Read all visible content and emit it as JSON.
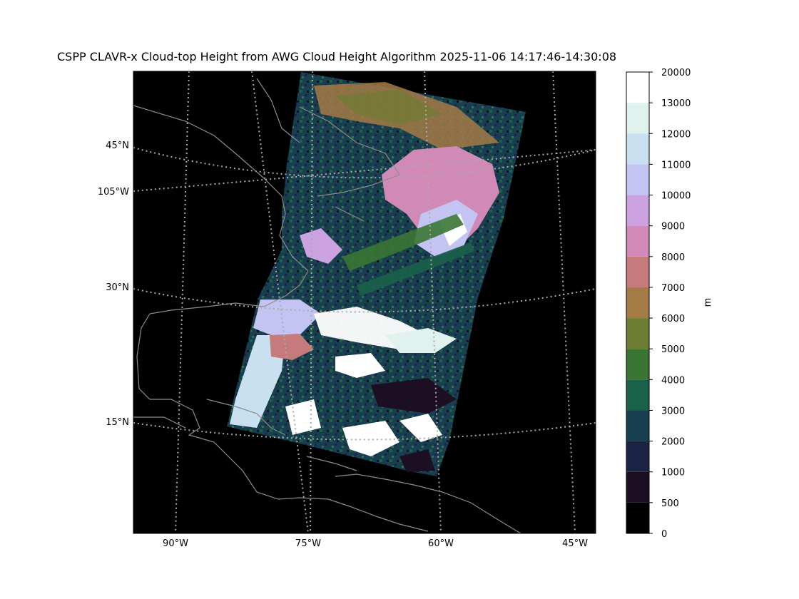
{
  "title": "CSPP CLAVR-x Cloud-top Height from AWG Cloud Height Algorithm 2025-11-06 14:17:46-14:30:08",
  "map": {
    "lat_labels": [
      "45°N",
      "105°W",
      "30°N",
      "15°N"
    ],
    "lon_labels": [
      "90°W",
      "75°W",
      "60°W",
      "45°W"
    ]
  },
  "colorbar": {
    "unit": "m",
    "ticks": [
      "0",
      "500",
      "1000",
      "2000",
      "3000",
      "4000",
      "5000",
      "6000",
      "7000",
      "8000",
      "9000",
      "10000",
      "11000",
      "12000",
      "13000",
      "20000"
    ],
    "colors": [
      "#000000",
      "#1c0f24",
      "#1c2446",
      "#173f4f",
      "#1a6149",
      "#3a7534",
      "#6d7d33",
      "#a47a47",
      "#c67a7b",
      "#d18ab7",
      "#cca2e1",
      "#c4c4f2",
      "#c9e0f1",
      "#dff2ee",
      "#ffffff"
    ]
  }
}
